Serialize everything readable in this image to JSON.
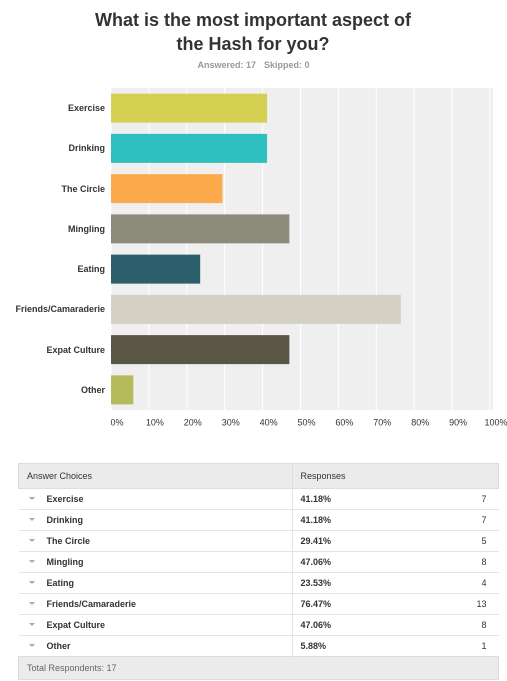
{
  "chart_data": {
    "type": "hbar",
    "title": "What is the most important aspect of the Hash for you?",
    "answered": "Answered: 17",
    "skipped": "Skipped: 0",
    "categories": [
      "Exercise",
      "Drinking",
      "The Circle",
      "Mingling",
      "Eating",
      "Friends/Camaraderie",
      "Expat Culture",
      "Other"
    ],
    "values": [
      41.18,
      41.18,
      29.41,
      47.06,
      23.53,
      76.47,
      47.06,
      5.88
    ],
    "value_labels": [
      "41.18%",
      "41.18%",
      "29.41%",
      "47.06%",
      "23.53%",
      "76.47%",
      "47.06%",
      "5.88%"
    ],
    "colors": [
      "#d6d052",
      "#2ebfbf",
      "#fdaa4d",
      "#8c8a7a",
      "#2a5f6b",
      "#d4d0c4",
      "#595646",
      "#b5ba5a"
    ],
    "xlim": [
      0,
      100
    ],
    "xticks": [
      {
        "value": 0,
        "label": "0%"
      },
      {
        "value": 10,
        "label": "10%"
      },
      {
        "value": 20,
        "label": "20%"
      },
      {
        "value": 30,
        "label": "30%"
      },
      {
        "value": 40,
        "label": "40%"
      },
      {
        "value": 50,
        "label": "50%"
      },
      {
        "value": 60,
        "label": "60%"
      },
      {
        "value": 70,
        "label": "70%"
      },
      {
        "value": 80,
        "label": "80%"
      },
      {
        "value": 90,
        "label": "90%"
      },
      {
        "value": 100,
        "label": "100%"
      }
    ],
    "grid": true
  },
  "table": {
    "headers": [
      "Answer Choices",
      "Responses"
    ],
    "responses": [
      7,
      7,
      5,
      8,
      4,
      13,
      8,
      1
    ],
    "footer": "Total Respondents: 17"
  }
}
